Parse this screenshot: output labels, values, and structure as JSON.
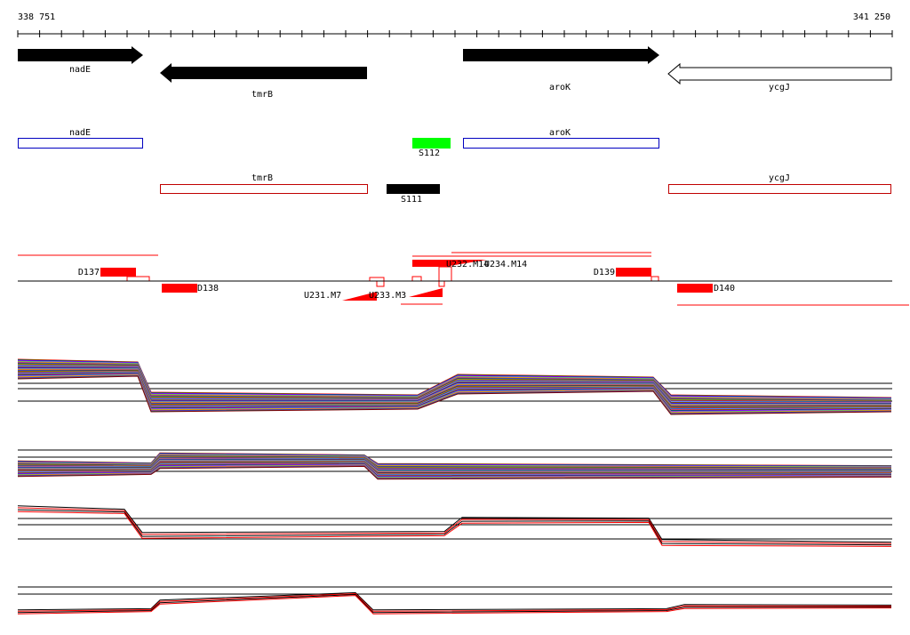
{
  "ruler": {
    "start": "338 751",
    "end": "341 250"
  },
  "genes": [
    {
      "label": "nadE"
    },
    {
      "label": "tmrB"
    },
    {
      "label": "aroK"
    },
    {
      "label": "ycgJ"
    }
  ],
  "features": [
    {
      "label": "nadE"
    },
    {
      "label": "aroK"
    },
    {
      "label": "S112"
    },
    {
      "label": "tmrB"
    },
    {
      "label": "S111"
    },
    {
      "label": "ycgJ"
    }
  ],
  "probes": [
    {
      "label": "D137"
    },
    {
      "label": "D138"
    },
    {
      "label": "U231.M7"
    },
    {
      "label": "U233.M3"
    },
    {
      "label": "U232.M14"
    },
    {
      "label": "U234.M14"
    },
    {
      "label": "D139"
    },
    {
      "label": "D140"
    }
  ]
}
